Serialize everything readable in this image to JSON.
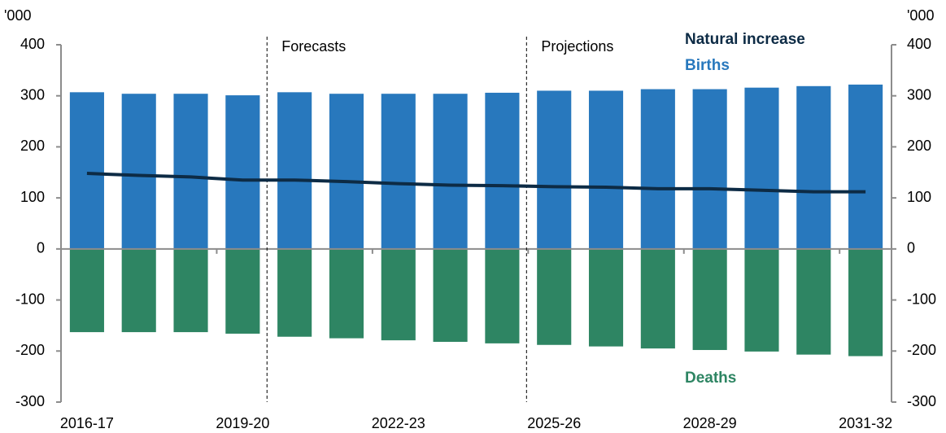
{
  "chart_data": {
    "type": "bar",
    "y_unit_label": "'000",
    "annotations": [
      "Forecasts",
      "Projections"
    ],
    "categories": [
      "2016-17",
      null,
      null,
      "2019-20",
      null,
      null,
      "2022-23",
      null,
      null,
      "2025-26",
      null,
      null,
      "2028-29",
      null,
      null,
      "2031-32"
    ],
    "series": [
      {
        "name": "Births",
        "type": "bar",
        "color": "#2878bd",
        "values": [
          307,
          304,
          304,
          301,
          307,
          304,
          304,
          304,
          306,
          310,
          310,
          313,
          313,
          316,
          319,
          322
        ]
      },
      {
        "name": "Deaths",
        "type": "bar",
        "color": "#2e8563",
        "values": [
          -163,
          -163,
          -163,
          -166,
          -172,
          -175,
          -179,
          -182,
          -185,
          -188,
          -191,
          -195,
          -198,
          -201,
          -207,
          -210
        ]
      },
      {
        "name": "Natural increase",
        "type": "line",
        "color": "#0d2b45",
        "values": [
          148,
          144,
          141,
          135,
          135,
          132,
          128,
          125,
          124,
          122,
          121,
          118,
          118,
          115,
          112,
          112
        ]
      }
    ],
    "ylim": [
      -300,
      400
    ],
    "yticks": [
      -300,
      -200,
      -100,
      0,
      100,
      200,
      300,
      400
    ],
    "y2lim": [
      -300,
      400
    ],
    "y2ticks": [
      -300,
      -200,
      -100,
      0,
      100,
      200,
      300,
      400
    ]
  }
}
